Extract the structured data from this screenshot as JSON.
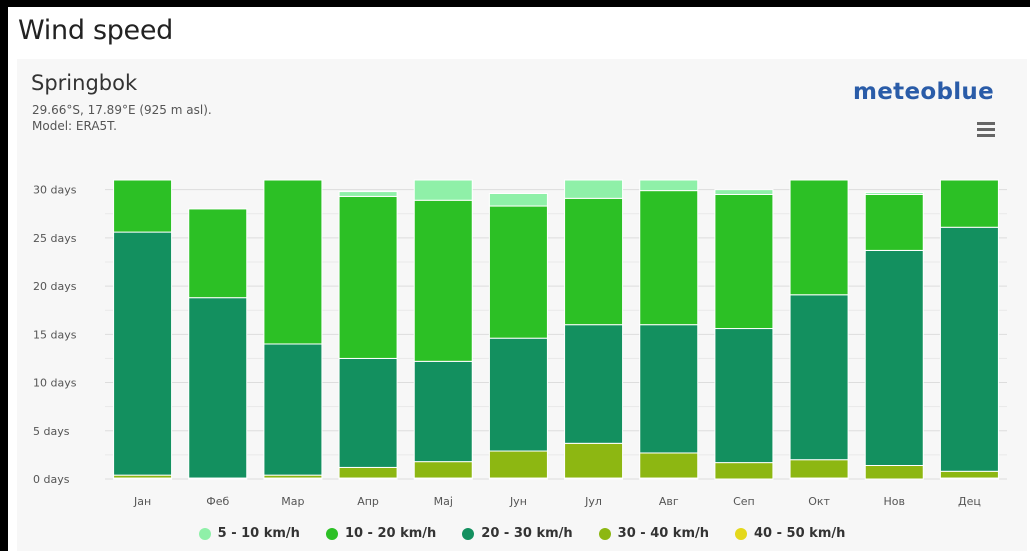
{
  "page": {
    "title": "Wind speed"
  },
  "location": {
    "name": "Springbok",
    "coords": "29.66°S, 17.89°E (925 m asl).",
    "model": "Model: ERA5T."
  },
  "brand": {
    "name": "meteoblue"
  },
  "menu": {
    "icon": "hamburger-menu-icon"
  },
  "chart_data": {
    "type": "bar",
    "stacked": true,
    "categories": [
      "Јан",
      "Феб",
      "Мар",
      "Апр",
      "Мај",
      "Јун",
      "Јул",
      "Авг",
      "Сеп",
      "Окт",
      "Нов",
      "Дец"
    ],
    "y_ticks": [
      "0 days",
      "5 days",
      "10 days",
      "15 days",
      "20 days",
      "25 days",
      "30 days"
    ],
    "ylim": [
      0,
      31
    ],
    "grid": true,
    "legend_position": "bottom",
    "series": [
      {
        "name": "40 - 50 km/h",
        "color": "#e4d81b",
        "values": [
          0.1,
          0.0,
          0.1,
          0.1,
          0.1,
          0.1,
          0.1,
          0.1,
          0.0,
          0.1,
          0.0,
          0.1
        ]
      },
      {
        "name": "30 - 40 km/h",
        "color": "#8db712",
        "values": [
          0.3,
          0.1,
          0.3,
          1.1,
          1.7,
          2.8,
          3.6,
          2.6,
          1.7,
          1.9,
          1.4,
          0.7
        ]
      },
      {
        "name": "20 - 30 km/h",
        "color": "#13905f",
        "values": [
          25.2,
          18.7,
          13.6,
          11.3,
          10.4,
          11.7,
          12.3,
          13.3,
          13.9,
          17.1,
          22.3,
          25.3
        ]
      },
      {
        "name": "10 - 20 km/h",
        "color": "#2cc025",
        "values": [
          5.4,
          9.2,
          17.0,
          16.8,
          16.7,
          13.7,
          13.1,
          13.9,
          13.9,
          11.9,
          5.8,
          4.9
        ]
      },
      {
        "name": "5 - 10 km/h",
        "color": "#8ff0a8",
        "values": [
          0.0,
          0.0,
          0.0,
          0.5,
          2.1,
          1.3,
          1.9,
          1.1,
          0.5,
          0.0,
          0.2,
          0.0
        ]
      }
    ],
    "legend_order": [
      "5 - 10 km/h",
      "10 - 20 km/h",
      "20 - 30 km/h",
      "30 - 40 km/h",
      "40 - 50 km/h"
    ]
  }
}
